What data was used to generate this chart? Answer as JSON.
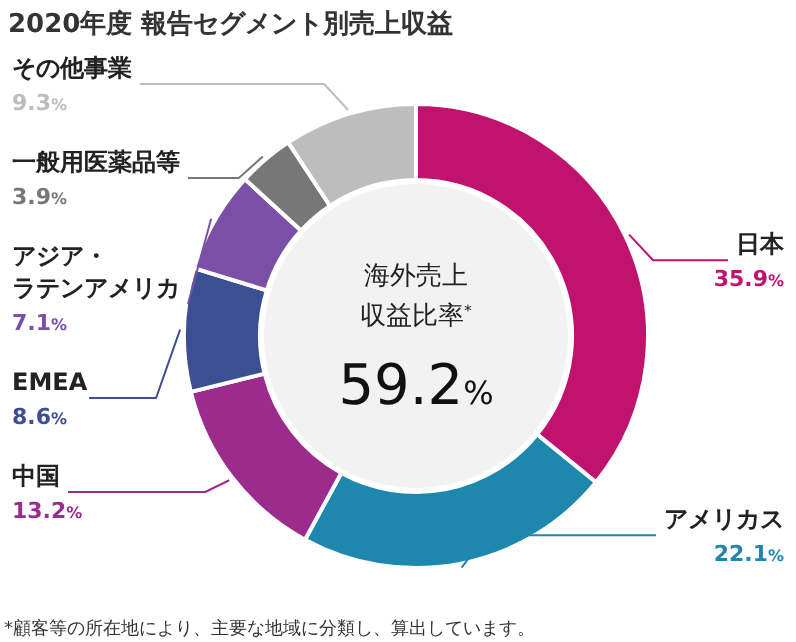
{
  "chart_data": {
    "type": "donut",
    "title": "2020年度 報告セグメント別売上収益",
    "categories": [
      "日本",
      "アメリカス",
      "中国",
      "EMEA",
      "アジア・ラテンアメリカ",
      "一般用医薬品等",
      "その他事業"
    ],
    "values": [
      35.9,
      22.1,
      13.2,
      8.6,
      7.1,
      3.9,
      9.3
    ],
    "colors": [
      "#c0136f",
      "#1e87ad",
      "#9b2c8e",
      "#3d4f93",
      "#7a4fa6",
      "#777777",
      "#bdbdbd"
    ],
    "value_labels": [
      "35.9%",
      "22.1%",
      "13.2%",
      "8.6%",
      "7.1%",
      "3.9%",
      "9.3%"
    ],
    "annotations": [
      "海外売上",
      "収益比率$^{*}$",
      "59.2%",
      "*顧客等の所在地により、主要な地域に分類し、算出しています。"
    ],
    "data_labels": false
  }
}
